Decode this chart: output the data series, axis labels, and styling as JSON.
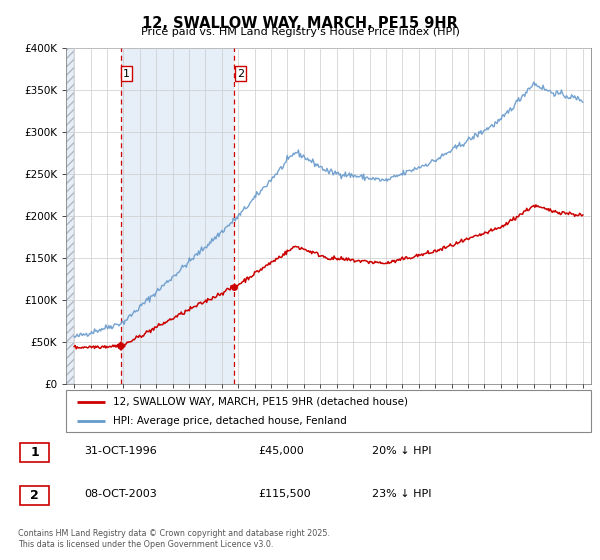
{
  "title": "12, SWALLOW WAY, MARCH, PE15 9HR",
  "subtitle": "Price paid vs. HM Land Registry's House Price Index (HPI)",
  "legend_line1": "12, SWALLOW WAY, MARCH, PE15 9HR (detached house)",
  "legend_line2": "HPI: Average price, detached house, Fenland",
  "table_rows": [
    {
      "num": "1",
      "date": "31-OCT-1996",
      "price": "£45,000",
      "hpi": "20% ↓ HPI"
    },
    {
      "num": "2",
      "date": "08-OCT-2003",
      "price": "£115,500",
      "hpi": "23% ↓ HPI"
    }
  ],
  "footnote": "Contains HM Land Registry data © Crown copyright and database right 2025.\nThis data is licensed under the Open Government Licence v3.0.",
  "sale1_year": 1996.83,
  "sale1_price": 45000,
  "sale2_year": 2003.77,
  "sale2_price": 115500,
  "red_color": "#cc0000",
  "blue_color": "#6699cc",
  "vline_color": "#cc0000",
  "grid_color": "#cccccc",
  "bg_color": "#dce9f5",
  "hatch_color": "#c8d8e8",
  "shade_color": "#dce9f5",
  "ylim": [
    0,
    400000
  ],
  "xlim_start": 1993.5,
  "xlim_end": 2025.5,
  "yticks": [
    0,
    50000,
    100000,
    150000,
    200000,
    250000,
    300000,
    350000,
    400000
  ],
  "xticks": [
    1994,
    1995,
    1996,
    1997,
    1998,
    1999,
    2000,
    2001,
    2002,
    2003,
    2004,
    2005,
    2006,
    2007,
    2008,
    2009,
    2010,
    2011,
    2012,
    2013,
    2014,
    2015,
    2016,
    2017,
    2018,
    2019,
    2020,
    2021,
    2022,
    2023,
    2024,
    2025
  ]
}
